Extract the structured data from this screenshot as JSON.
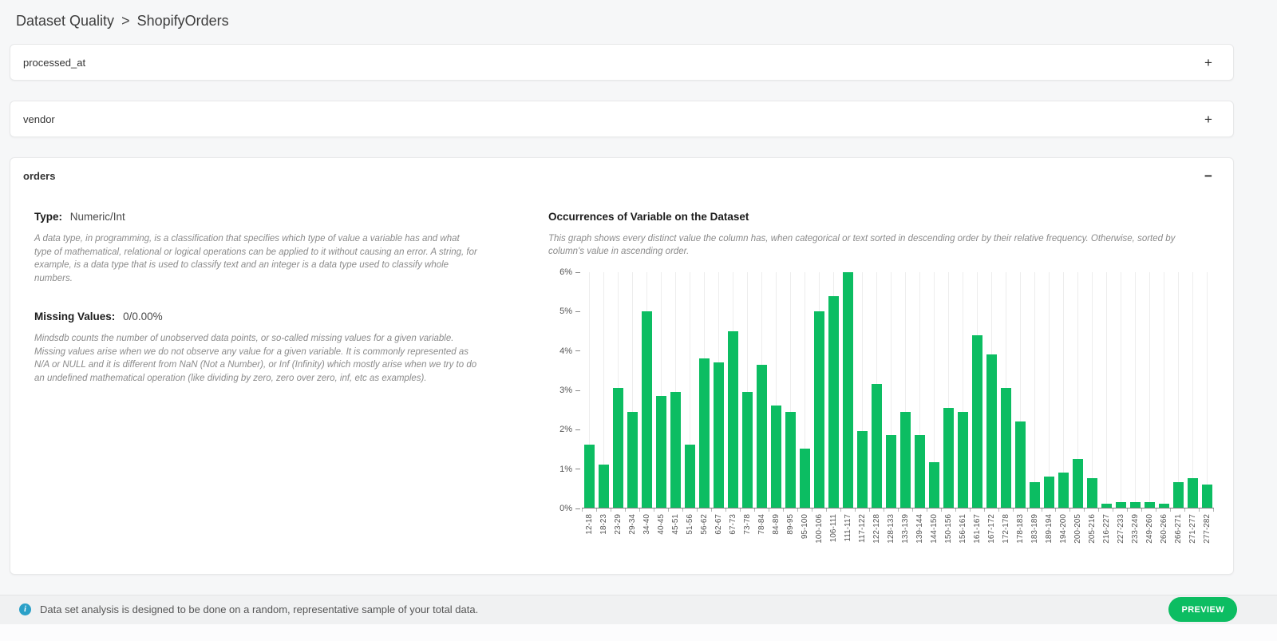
{
  "breadcrumb": {
    "section": "Dataset Quality",
    "separator": ">",
    "page": "ShopifyOrders"
  },
  "panels": [
    {
      "title": "processed_at",
      "toggle_icon": "+",
      "expanded": false
    },
    {
      "title": "vendor",
      "toggle_icon": "+",
      "expanded": false
    },
    {
      "title": "orders",
      "toggle_icon": "−",
      "expanded": true
    }
  ],
  "orders_panel": {
    "type_label": "Type:",
    "type_value": "Numeric/Int",
    "type_description": "A data type, in programming, is a classification that specifies which type of value a variable has and what type of mathematical, relational or logical operations can be applied to it without causing an error. A string, for example, is a data type that is used to classify text and an integer is a data type used to classify whole numbers.",
    "missing_label": "Missing Values:",
    "missing_value": "0/0.00%",
    "missing_description": "Mindsdb counts the number of unobserved data points, or so-called missing values for a given variable. Missing values arise when we do not observe any value for a given variable. It is commonly represented as N/A or NULL and it is different from NaN (Not a Number), or Inf (Infinity) which mostly arise when we try to do an undefined mathematical operation (like dividing by zero, zero over zero, inf, etc as examples).",
    "chart_title": "Occurrences of Variable on the Dataset",
    "chart_description": "This graph shows every distinct value the column has, when categorical or text sorted in descending order by their relative frequency. Otherwise, sorted by column's value in ascending order."
  },
  "chart_data": {
    "type": "bar",
    "title": "Occurrences of Variable on the Dataset",
    "categories": [
      "12-18",
      "18-23",
      "23-29",
      "29-34",
      "34-40",
      "40-45",
      "45-51",
      "51-56",
      "56-62",
      "62-67",
      "67-73",
      "73-78",
      "78-84",
      "84-89",
      "89-95",
      "95-100",
      "100-106",
      "106-111",
      "111-117",
      "117-122",
      "122-128",
      "128-133",
      "133-139",
      "139-144",
      "144-150",
      "150-156",
      "156-161",
      "161-167",
      "167-172",
      "172-178",
      "178-183",
      "183-189",
      "189-194",
      "194-200",
      "200-205",
      "205-216",
      "216-227",
      "227-233",
      "233-249",
      "249-260",
      "260-266",
      "266-271",
      "271-277",
      "277-282"
    ],
    "values": [
      1.6,
      1.1,
      3.05,
      2.45,
      5.0,
      2.85,
      2.95,
      1.6,
      3.8,
      3.7,
      4.5,
      2.95,
      3.65,
      2.6,
      2.45,
      1.5,
      5.0,
      5.4,
      6.0,
      1.95,
      3.15,
      1.85,
      2.45,
      1.85,
      1.15,
      2.55,
      2.45,
      4.4,
      3.9,
      3.05,
      2.2,
      0.65,
      0.8,
      0.9,
      1.25,
      0.75,
      0.1,
      0.15,
      0.15,
      0.15,
      0.1,
      0.65,
      0.75,
      0.6
    ],
    "y_ticks": [
      "6%",
      "5%",
      "4%",
      "3%",
      "2%",
      "1%",
      "0%"
    ],
    "ylim": [
      0,
      6
    ],
    "unit": "%",
    "xlabel": "",
    "ylabel": "",
    "grid": "vertical-light",
    "legend": "none",
    "bar_color": "#0cbd62"
  },
  "footer": {
    "info_text": "Data set analysis is designed to be done on a random, representative sample of your total data.",
    "preview_label": "PREVIEW"
  },
  "colors": {
    "accent_green": "#0cbd62",
    "info_icon_blue": "#2aa0c8",
    "page_bg": "#f6f7f8"
  }
}
